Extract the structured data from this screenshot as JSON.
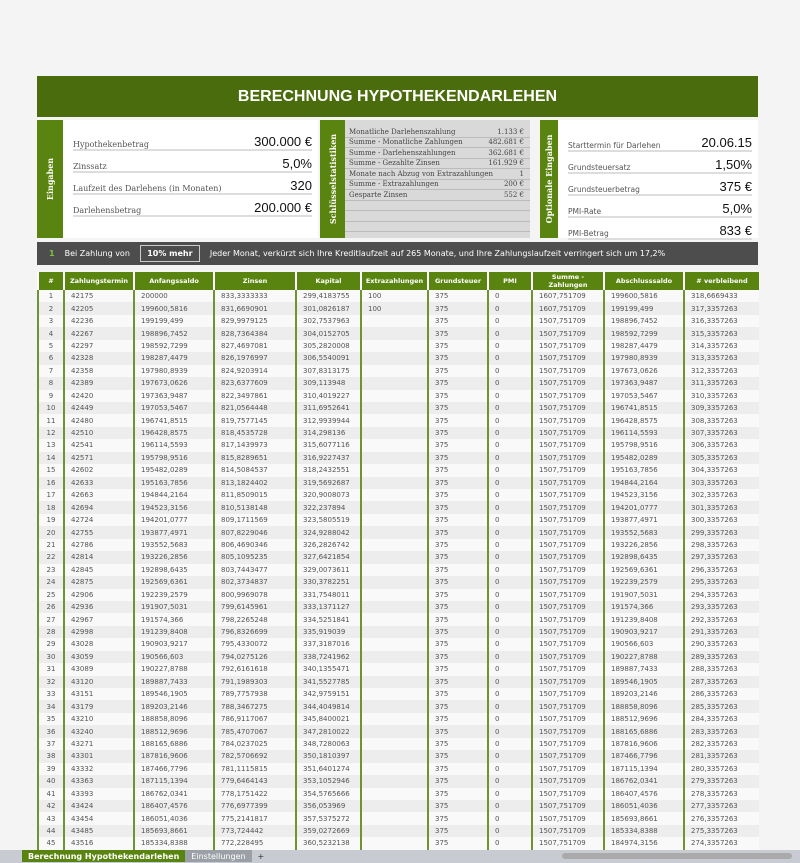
{
  "title": "BERECHNUNG HYPOTHEKENDARLEHEN",
  "inputs": {
    "label": "Eingaben",
    "items": [
      {
        "label": "Hypothekenbetrag",
        "value": "300.000 €"
      },
      {
        "label": "Zinssatz",
        "value": "5,0%"
      },
      {
        "label": "Laufzeit des Darlehens (in Monaten)",
        "value": "320"
      },
      {
        "label": "Darlehensbetrag",
        "value": "200.000 €"
      }
    ]
  },
  "stats": {
    "label": "Schlüsselstatistiken",
    "items": [
      {
        "label": "Monatliche Darlehenszahlung",
        "value": "1.133 €"
      },
      {
        "label": "Summe - Monatliche Zahlungen",
        "value": "482.681 €"
      },
      {
        "label": "Summe - Darlehenszahlungen",
        "value": "362.681 €"
      },
      {
        "label": "Summe - Gezahlte Zinsen",
        "value": "161.929 €"
      },
      {
        "label": "Monate nach Abzug von Extrazahlungen",
        "value": "1"
      },
      {
        "label": "Summe - Extrazahlungen",
        "value": "200 €"
      },
      {
        "label": "Gesparte Zinsen",
        "value": "552 €"
      }
    ]
  },
  "optional": {
    "label": "Optionale Eingaben",
    "items": [
      {
        "label": "Starttermin für Darlehen",
        "value": "20.06.15"
      },
      {
        "label": "Grundsteuersatz",
        "value": "1,50%"
      },
      {
        "label": "Grundsteuerbetrag",
        "value": "375 €"
      },
      {
        "label": "PMI-Rate",
        "value": "5,0%"
      },
      {
        "label": "PMI-Betrag",
        "value": "833 €"
      }
    ]
  },
  "banner": {
    "icon": "1",
    "prefix": "Bei Zahlung von",
    "selection": "10% mehr",
    "message": "Jeder Monat, verkürzt sich Ihre Kreditlaufzeit auf 265 Monate, und Ihre Zahlungslaufzeit verringert sich um 17,2%"
  },
  "table": {
    "headers": [
      "#",
      "Zahlungstermin",
      "Anfangssaldo",
      "Zinsen",
      "Kapital",
      "Extrazahlungen",
      "Grundsteuer",
      "PMI",
      "Summe - Zahlungen",
      "Abschlusssaldo",
      "# verbleibend"
    ],
    "rows": [
      [
        "1",
        "42175",
        "200000",
        "833,3333333",
        "299,4183755",
        "100",
        "375",
        "0",
        "1607,751709",
        "199600,5816",
        "318,6669433"
      ],
      [
        "2",
        "42205",
        "199600,5816",
        "831,6690901",
        "301,0826187",
        "100",
        "375",
        "0",
        "1607,751709",
        "199199,499",
        "317,3357263"
      ],
      [
        "3",
        "42236",
        "199199,499",
        "829,9979125",
        "302,7537963",
        "",
        "375",
        "0",
        "1507,751709",
        "198896,7452",
        "316,3357263"
      ],
      [
        "4",
        "42267",
        "198896,7452",
        "828,7364384",
        "304,0152705",
        "",
        "375",
        "0",
        "1507,751709",
        "198592,7299",
        "315,3357263"
      ],
      [
        "5",
        "42297",
        "198592,7299",
        "827,4697081",
        "305,2820008",
        "",
        "375",
        "0",
        "1507,751709",
        "198287,4479",
        "314,3357263"
      ],
      [
        "6",
        "42328",
        "198287,4479",
        "826,1976997",
        "306,5540091",
        "",
        "375",
        "0",
        "1507,751709",
        "197980,8939",
        "313,3357263"
      ],
      [
        "7",
        "42358",
        "197980,8939",
        "824,9203914",
        "307,8313175",
        "",
        "375",
        "0",
        "1507,751709",
        "197673,0626",
        "312,3357263"
      ],
      [
        "8",
        "42389",
        "197673,0626",
        "823,6377609",
        "309,113948",
        "",
        "375",
        "0",
        "1507,751709",
        "197363,9487",
        "311,3357263"
      ],
      [
        "9",
        "42420",
        "197363,9487",
        "822,3497861",
        "310,4019227",
        "",
        "375",
        "0",
        "1507,751709",
        "197053,5467",
        "310,3357263"
      ],
      [
        "10",
        "42449",
        "197053,5467",
        "821,0564448",
        "311,6952641",
        "",
        "375",
        "0",
        "1507,751709",
        "196741,8515",
        "309,3357263"
      ],
      [
        "11",
        "42480",
        "196741,8515",
        "819,7577145",
        "312,9939944",
        "",
        "375",
        "0",
        "1507,751709",
        "196428,8575",
        "308,3357263"
      ],
      [
        "12",
        "42510",
        "196428,8575",
        "818,4535728",
        "314,298136",
        "",
        "375",
        "0",
        "1507,751709",
        "196114,5593",
        "307,3357263"
      ],
      [
        "13",
        "42541",
        "196114,5593",
        "817,1439973",
        "315,6077116",
        "",
        "375",
        "0",
        "1507,751709",
        "195798,9516",
        "306,3357263"
      ],
      [
        "14",
        "42571",
        "195798,9516",
        "815,8289651",
        "316,9227437",
        "",
        "375",
        "0",
        "1507,751709",
        "195482,0289",
        "305,3357263"
      ],
      [
        "15",
        "42602",
        "195482,0289",
        "814,5084537",
        "318,2432551",
        "",
        "375",
        "0",
        "1507,751709",
        "195163,7856",
        "304,3357263"
      ],
      [
        "16",
        "42633",
        "195163,7856",
        "813,1824402",
        "319,5692687",
        "",
        "375",
        "0",
        "1507,751709",
        "194844,2164",
        "303,3357263"
      ],
      [
        "17",
        "42663",
        "194844,2164",
        "811,8509015",
        "320,9008073",
        "",
        "375",
        "0",
        "1507,751709",
        "194523,3156",
        "302,3357263"
      ],
      [
        "18",
        "42694",
        "194523,3156",
        "810,5138148",
        "322,237894",
        "",
        "375",
        "0",
        "1507,751709",
        "194201,0777",
        "301,3357263"
      ],
      [
        "19",
        "42724",
        "194201,0777",
        "809,1711569",
        "323,5805519",
        "",
        "375",
        "0",
        "1507,751709",
        "193877,4971",
        "300,3357263"
      ],
      [
        "20",
        "42755",
        "193877,4971",
        "807,8229046",
        "324,9288042",
        "",
        "375",
        "0",
        "1507,751709",
        "193552,5683",
        "299,3357263"
      ],
      [
        "21",
        "42786",
        "193552,5683",
        "806,4690346",
        "326,2826742",
        "",
        "375",
        "0",
        "1507,751709",
        "193226,2856",
        "298,3357263"
      ],
      [
        "22",
        "42814",
        "193226,2856",
        "805,1095235",
        "327,6421854",
        "",
        "375",
        "0",
        "1507,751709",
        "192898,6435",
        "297,3357263"
      ],
      [
        "23",
        "42845",
        "192898,6435",
        "803,7443477",
        "329,0073611",
        "",
        "375",
        "0",
        "1507,751709",
        "192569,6361",
        "296,3357263"
      ],
      [
        "24",
        "42875",
        "192569,6361",
        "802,3734837",
        "330,3782251",
        "",
        "375",
        "0",
        "1507,751709",
        "192239,2579",
        "295,3357263"
      ],
      [
        "25",
        "42906",
        "192239,2579",
        "800,9969078",
        "331,7548011",
        "",
        "375",
        "0",
        "1507,751709",
        "191907,5031",
        "294,3357263"
      ],
      [
        "26",
        "42936",
        "191907,5031",
        "799,6145961",
        "333,1371127",
        "",
        "375",
        "0",
        "1507,751709",
        "191574,366",
        "293,3357263"
      ],
      [
        "27",
        "42967",
        "191574,366",
        "798,2265248",
        "334,5251841",
        "",
        "375",
        "0",
        "1507,751709",
        "191239,8408",
        "292,3357263"
      ],
      [
        "28",
        "42998",
        "191239,8408",
        "796,8326699",
        "335,919039",
        "",
        "375",
        "0",
        "1507,751709",
        "190903,9217",
        "291,3357263"
      ],
      [
        "29",
        "43028",
        "190903,9217",
        "795,4330072",
        "337,3187016",
        "",
        "375",
        "0",
        "1507,751709",
        "190566,603",
        "290,3357263"
      ],
      [
        "30",
        "43059",
        "190566,603",
        "794,0275126",
        "338,7241962",
        "",
        "375",
        "0",
        "1507,751709",
        "190227,8788",
        "289,3357263"
      ],
      [
        "31",
        "43089",
        "190227,8788",
        "792,6161618",
        "340,1355471",
        "",
        "375",
        "0",
        "1507,751709",
        "189887,7433",
        "288,3357263"
      ],
      [
        "32",
        "43120",
        "189887,7433",
        "791,1989303",
        "341,5527785",
        "",
        "375",
        "0",
        "1507,751709",
        "189546,1905",
        "287,3357263"
      ],
      [
        "33",
        "43151",
        "189546,1905",
        "789,7757938",
        "342,9759151",
        "",
        "375",
        "0",
        "1507,751709",
        "189203,2146",
        "286,3357263"
      ],
      [
        "34",
        "43179",
        "189203,2146",
        "788,3467275",
        "344,4049814",
        "",
        "375",
        "0",
        "1507,751709",
        "188858,8096",
        "285,3357263"
      ],
      [
        "35",
        "43210",
        "188858,8096",
        "786,9117067",
        "345,8400021",
        "",
        "375",
        "0",
        "1507,751709",
        "188512,9696",
        "284,3357263"
      ],
      [
        "36",
        "43240",
        "188512,9696",
        "785,4707067",
        "347,2810022",
        "",
        "375",
        "0",
        "1507,751709",
        "188165,6886",
        "283,3357263"
      ],
      [
        "37",
        "43271",
        "188165,6886",
        "784,0237025",
        "348,7280063",
        "",
        "375",
        "0",
        "1507,751709",
        "187816,9606",
        "282,3357263"
      ],
      [
        "38",
        "43301",
        "187816,9606",
        "782,5706692",
        "350,1810397",
        "",
        "375",
        "0",
        "1507,751709",
        "187466,7796",
        "281,3357263"
      ],
      [
        "39",
        "43332",
        "187466,7796",
        "781,1115815",
        "351,6401274",
        "",
        "375",
        "0",
        "1507,751709",
        "187115,1394",
        "280,3357263"
      ],
      [
        "40",
        "43363",
        "187115,1394",
        "779,6464143",
        "353,1052946",
        "",
        "375",
        "0",
        "1507,751709",
        "186762,0341",
        "279,3357263"
      ],
      [
        "41",
        "43393",
        "186762,0341",
        "778,1751422",
        "354,5765666",
        "",
        "375",
        "0",
        "1507,751709",
        "186407,4576",
        "278,3357263"
      ],
      [
        "42",
        "43424",
        "186407,4576",
        "776,6977399",
        "356,053969",
        "",
        "375",
        "0",
        "1507,751709",
        "186051,4036",
        "277,3357263"
      ],
      [
        "43",
        "43454",
        "186051,4036",
        "775,2141817",
        "357,5375272",
        "",
        "375",
        "0",
        "1507,751709",
        "185693,8661",
        "276,3357263"
      ],
      [
        "44",
        "43485",
        "185693,8661",
        "773,724442",
        "359,0272669",
        "",
        "375",
        "0",
        "1507,751709",
        "185334,8388",
        "275,3357263"
      ],
      [
        "45",
        "43516",
        "185334,8388",
        "772,228495",
        "360,5232138",
        "",
        "375",
        "0",
        "1507,751709",
        "184974,3156",
        "274,3357263"
      ]
    ]
  },
  "sheet_tabs": [
    "Berechnung Hypothekendarlehen",
    "Einstellungen",
    "+"
  ],
  "colors": {
    "accent": "#5a8410",
    "title_bg": "#4b6c0d",
    "banner_bg": "#4d4d4d"
  }
}
